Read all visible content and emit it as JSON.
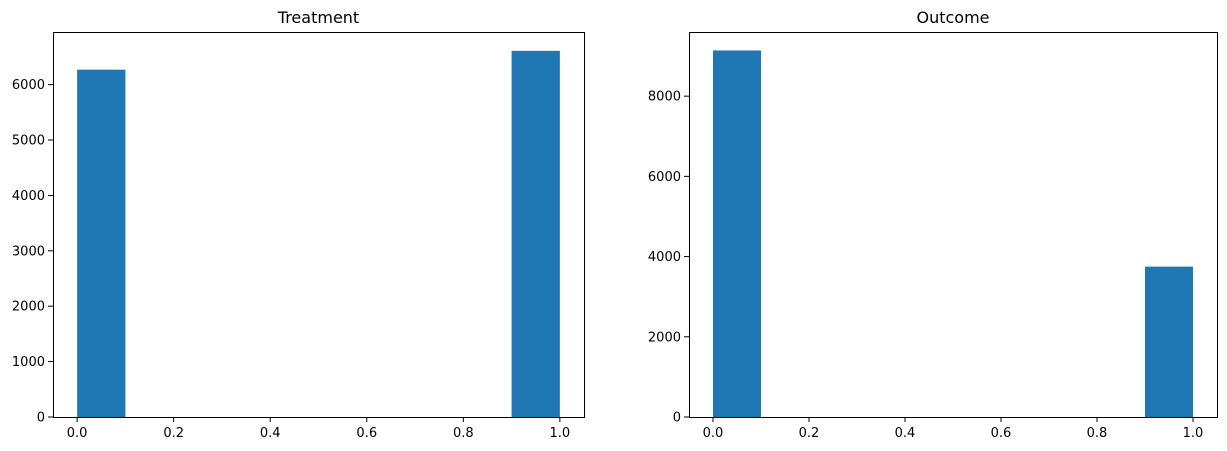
{
  "chart_data": [
    {
      "type": "bar",
      "title": "Treatment",
      "xlabel": "",
      "ylabel": "",
      "bar_color": "#1f77b4",
      "bins": [
        {
          "x0": 0.0,
          "x1": 0.1,
          "value": 6270
        },
        {
          "x0": 0.9,
          "x1": 1.0,
          "value": 6610
        }
      ],
      "xlim": [
        -0.05,
        1.05
      ],
      "ylim": [
        0,
        6950
      ],
      "xticks": [
        0.0,
        0.2,
        0.4,
        0.6,
        0.8,
        1.0
      ],
      "xtick_labels": [
        "0.0",
        "0.2",
        "0.4",
        "0.6",
        "0.8",
        "1.0"
      ],
      "yticks": [
        0,
        1000,
        2000,
        3000,
        4000,
        5000,
        6000
      ],
      "ytick_labels": [
        "0",
        "1000",
        "2000",
        "3000",
        "4000",
        "5000",
        "6000"
      ],
      "grid": false,
      "legend": "none"
    },
    {
      "type": "bar",
      "title": "Outcome",
      "xlabel": "",
      "ylabel": "",
      "bar_color": "#1f77b4",
      "bins": [
        {
          "x0": 0.0,
          "x1": 0.1,
          "value": 9140
        },
        {
          "x0": 0.9,
          "x1": 1.0,
          "value": 3750
        }
      ],
      "xlim": [
        -0.05,
        1.05
      ],
      "ylim": [
        0,
        9600
      ],
      "xticks": [
        0.0,
        0.2,
        0.4,
        0.6,
        0.8,
        1.0
      ],
      "xtick_labels": [
        "0.0",
        "0.2",
        "0.4",
        "0.6",
        "0.8",
        "1.0"
      ],
      "yticks": [
        0,
        2000,
        4000,
        6000,
        8000
      ],
      "ytick_labels": [
        "0",
        "2000",
        "4000",
        "6000",
        "8000"
      ],
      "grid": false,
      "legend": "none"
    }
  ]
}
